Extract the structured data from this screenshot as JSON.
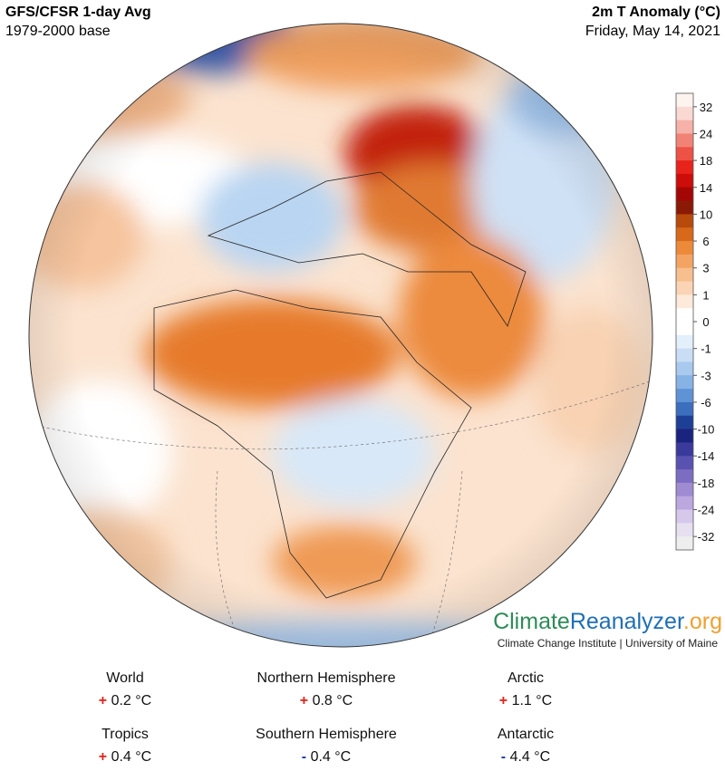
{
  "header": {
    "title": "GFS/CFSR 1-day Avg",
    "subtitle": "1979-2000 base",
    "variable": "2m T Anomaly (°C)",
    "date": "Friday, May 14, 2021"
  },
  "colorbar": {
    "labels": [
      "32",
      "24",
      "18",
      "14",
      "10",
      "6",
      "3",
      "1",
      "0",
      "-1",
      "-3",
      "-6",
      "-10",
      "-14",
      "-18",
      "-24",
      "-32"
    ]
  },
  "branding": {
    "climate": "Climate",
    "reanalyzer": "Reanalyzer",
    "org": ".org",
    "credit": "Climate Change Institute | University of Maine"
  },
  "stats": [
    {
      "region": "World",
      "sign": "+",
      "value": "0.2 °C"
    },
    {
      "region": "Northern Hemisphere",
      "sign": "+",
      "value": "0.8 °C"
    },
    {
      "region": "Arctic",
      "sign": "+",
      "value": "1.1 °C"
    },
    {
      "region": "Tropics",
      "sign": "+",
      "value": "0.4 °C"
    },
    {
      "region": "Southern Hemisphere",
      "sign": "-",
      "value": "0.4 °C"
    },
    {
      "region": "Antarctic",
      "sign": "-",
      "value": "4.4 °C"
    }
  ]
}
